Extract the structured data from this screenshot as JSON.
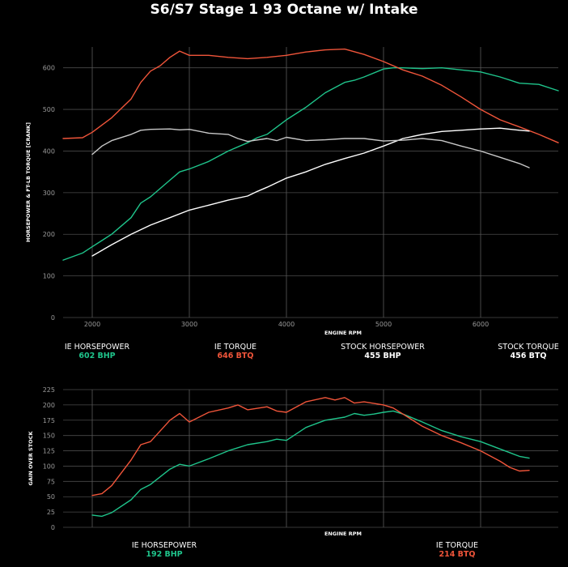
{
  "title": "S6/S7 Stage 1 93 Octane w/ Intake",
  "colors": {
    "hp": "#1fc48b",
    "tq": "#f0553a",
    "stock_hp": "#ffffff",
    "stock_tq": "#c8c8c8"
  },
  "chart_data": [
    {
      "type": "line",
      "xlabel": "ENGINE RPM",
      "ylabel": "HORSEPOWER & FT-LB TORQUE [CRANK]",
      "xlim": [
        1700,
        6800
      ],
      "ylim": [
        0,
        650
      ],
      "x_ticks": [
        "2000",
        "3000",
        "4000",
        "5000",
        "6000"
      ],
      "y_ticks": [
        "0",
        "100",
        "200",
        "300",
        "400",
        "500",
        "600"
      ],
      "series": [
        {
          "name": "IE HORSEPOWER",
          "peak": "602 BHP",
          "x": [
            1700,
            1900,
            2000,
            2200,
            2400,
            2500,
            2600,
            2800,
            2900,
            3000,
            3200,
            3400,
            3600,
            3700,
            3800,
            4000,
            4200,
            4400,
            4600,
            4700,
            4800,
            5000,
            5100,
            5200,
            5400,
            5600,
            5800,
            6000,
            6200,
            6400,
            6600,
            6800
          ],
          "y": [
            138,
            155,
            170,
            200,
            240,
            275,
            290,
            330,
            350,
            357,
            375,
            400,
            420,
            432,
            440,
            475,
            505,
            540,
            565,
            570,
            578,
            597,
            600,
            600,
            598,
            600,
            595,
            590,
            578,
            563,
            560,
            545
          ]
        },
        {
          "name": "IE TORQUE",
          "peak": "646 BTQ",
          "x": [
            1700,
            1900,
            2000,
            2200,
            2400,
            2500,
            2600,
            2700,
            2800,
            2900,
            3000,
            3200,
            3400,
            3600,
            3800,
            4000,
            4200,
            4400,
            4600,
            4800,
            5000,
            5200,
            5400,
            5600,
            5800,
            6000,
            6200,
            6400,
            6600,
            6800
          ],
          "y": [
            430,
            432,
            445,
            480,
            525,
            565,
            592,
            605,
            625,
            640,
            630,
            630,
            625,
            622,
            625,
            630,
            638,
            643,
            645,
            632,
            615,
            595,
            580,
            558,
            530,
            500,
            475,
            458,
            440,
            420
          ]
        },
        {
          "name": "STOCK HORSEPOWER",
          "peak": "455 BHP",
          "x": [
            2000,
            2200,
            2400,
            2600,
            2800,
            3000,
            3200,
            3400,
            3600,
            3700,
            3800,
            4000,
            4200,
            4400,
            4600,
            4800,
            5000,
            5200,
            5400,
            5600,
            5800,
            6000,
            6200,
            6400,
            6500
          ],
          "y": [
            148,
            175,
            200,
            222,
            240,
            258,
            270,
            282,
            292,
            303,
            313,
            335,
            350,
            368,
            382,
            395,
            412,
            430,
            440,
            447,
            450,
            453,
            455,
            450,
            448
          ]
        },
        {
          "name": "STOCK TORQUE",
          "peak": "456 BTQ",
          "x": [
            2000,
            2100,
            2200,
            2400,
            2500,
            2600,
            2800,
            2900,
            3000,
            3200,
            3400,
            3500,
            3600,
            3800,
            3900,
            4000,
            4200,
            4400,
            4600,
            4800,
            5000,
            5200,
            5400,
            5600,
            5800,
            6000,
            6200,
            6400,
            6500
          ],
          "y": [
            392,
            412,
            425,
            440,
            450,
            452,
            453,
            451,
            452,
            443,
            440,
            430,
            423,
            430,
            425,
            433,
            425,
            427,
            430,
            430,
            424,
            426,
            430,
            425,
            412,
            400,
            385,
            370,
            360
          ]
        }
      ]
    },
    {
      "type": "line",
      "xlabel": "ENGINE RPM",
      "ylabel": "GAIN OVER STOCK",
      "xlim": [
        1700,
        6800
      ],
      "ylim": [
        0,
        225
      ],
      "y_ticks": [
        "0",
        "25",
        "50",
        "75",
        "100",
        "125",
        "150",
        "175",
        "200",
        "225"
      ],
      "series": [
        {
          "name": "IE HORSEPOWER",
          "peak": "192 BHP",
          "x": [
            2000,
            2100,
            2200,
            2400,
            2500,
            2600,
            2800,
            2900,
            3000,
            3200,
            3400,
            3600,
            3800,
            3900,
            4000,
            4200,
            4400,
            4600,
            4700,
            4800,
            4900,
            5000,
            5100,
            5200,
            5400,
            5600,
            5800,
            6000,
            6200,
            6300,
            6400,
            6500
          ],
          "y": [
            20,
            18,
            24,
            45,
            62,
            70,
            95,
            103,
            100,
            112,
            125,
            135,
            140,
            144,
            142,
            163,
            175,
            180,
            186,
            183,
            185,
            188,
            190,
            185,
            172,
            158,
            148,
            140,
            128,
            122,
            116,
            113
          ]
        },
        {
          "name": "IE TORQUE",
          "peak": "214 BTQ",
          "x": [
            2000,
            2100,
            2200,
            2400,
            2500,
            2600,
            2800,
            2900,
            3000,
            3200,
            3400,
            3500,
            3600,
            3800,
            3900,
            4000,
            4200,
            4400,
            4500,
            4600,
            4700,
            4800,
            5000,
            5100,
            5200,
            5400,
            5600,
            5800,
            6000,
            6200,
            6300,
            6400,
            6500
          ],
          "y": [
            52,
            55,
            68,
            110,
            135,
            140,
            175,
            186,
            172,
            188,
            195,
            200,
            192,
            197,
            190,
            188,
            205,
            212,
            208,
            212,
            203,
            205,
            200,
            195,
            185,
            165,
            150,
            138,
            125,
            108,
            98,
            92,
            93
          ]
        }
      ]
    }
  ]
}
